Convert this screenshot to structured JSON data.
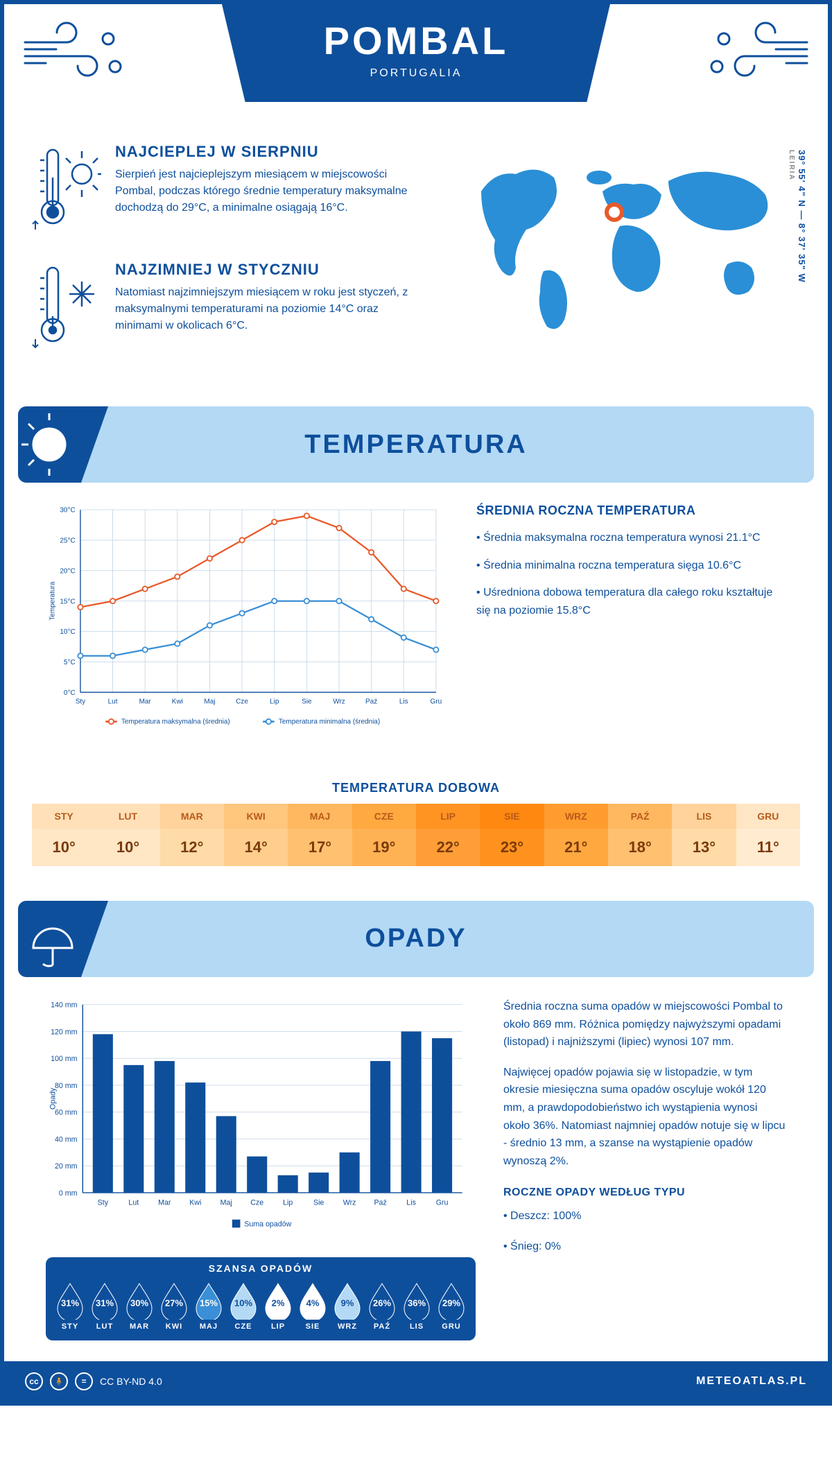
{
  "header": {
    "title": "POMBAL",
    "country": "PORTUGALIA"
  },
  "coords": "39° 55' 4\" N — 8° 37' 35\" W",
  "region": "LEIRIA",
  "hot": {
    "title": "NAJCIEPLEJ W SIERPNIU",
    "text": "Sierpień jest najcieplejszym miesiącem w miejscowości Pombal, podczas którego średnie temperatury maksymalne dochodzą do 29°C, a minimalne osiągają 16°C."
  },
  "cold": {
    "title": "NAJZIMNIEJ W STYCZNIU",
    "text": "Natomiast najzimniejszym miesiącem w roku jest styczeń, z maksymalnymi temperaturami na poziomie 14°C oraz minimami w okolicach 6°C."
  },
  "sections": {
    "temperature": "TEMPERATURA",
    "rain": "OPADY"
  },
  "months_short": [
    "Sty",
    "Lut",
    "Mar",
    "Kwi",
    "Maj",
    "Cze",
    "Lip",
    "Sie",
    "Wrz",
    "Paź",
    "Lis",
    "Gru"
  ],
  "months_upper": [
    "STY",
    "LUT",
    "MAR",
    "KWI",
    "MAJ",
    "CZE",
    "LIP",
    "SIE",
    "WRZ",
    "PAŹ",
    "LIS",
    "GRU"
  ],
  "temp_chart": {
    "type": "line",
    "ylabel": "Temperatura",
    "ylim": [
      0,
      30
    ],
    "ytick_step": 5,
    "yticks": [
      "0°C",
      "5°C",
      "10°C",
      "15°C",
      "20°C",
      "25°C",
      "30°C"
    ],
    "max": [
      14,
      15,
      17,
      19,
      22,
      25,
      28,
      29,
      27,
      23,
      17,
      15
    ],
    "min": [
      6,
      6,
      7,
      8,
      11,
      13,
      15,
      15,
      15,
      12,
      9,
      7
    ],
    "max_color": "#e85a2a",
    "min_color": "#3a8fd6",
    "grid_color": "#c8d8e8",
    "legend_max": "Temperatura maksymalna (średnia)",
    "legend_min": "Temperatura minimalna (średnia)"
  },
  "avg_temp": {
    "title": "ŚREDNIA ROCZNA TEMPERATURA",
    "items": [
      "• Średnia maksymalna roczna temperatura wynosi 21.1°C",
      "• Średnia minimalna roczna temperatura sięga 10.6°C",
      "• Uśredniona dobowa temperatura dla całego roku kształtuje się na poziomie 15.8°C"
    ]
  },
  "daily_title": "TEMPERATURA DOBOWA",
  "daily": {
    "values": [
      "10°",
      "10°",
      "12°",
      "14°",
      "17°",
      "19°",
      "22°",
      "23°",
      "21°",
      "18°",
      "13°",
      "11°"
    ],
    "head_colors": [
      "#ffe0b8",
      "#ffe0b8",
      "#ffd39b",
      "#ffc67d",
      "#ffb85f",
      "#ffa941",
      "#ff9423",
      "#ff8810",
      "#ff9c2f",
      "#ffb85f",
      "#ffd39b",
      "#ffe6c4"
    ],
    "val_colors": [
      "#ffe6c4",
      "#ffe6c4",
      "#ffdba8",
      "#ffce8c",
      "#ffc070",
      "#ffb254",
      "#ff9e36",
      "#ff921e",
      "#ffa840",
      "#ffc070",
      "#ffdba8",
      "#ffecd0"
    ]
  },
  "rain_chart": {
    "type": "bar",
    "ylabel": "Opady",
    "ylim": [
      0,
      140
    ],
    "ytick_step": 20,
    "yticks": [
      "0 mm",
      "20 mm",
      "40 mm",
      "60 mm",
      "80 mm",
      "100 mm",
      "120 mm",
      "140 mm"
    ],
    "values": [
      118,
      95,
      98,
      82,
      57,
      27,
      13,
      15,
      30,
      98,
      120,
      115
    ],
    "bar_color": "#0e4f9c",
    "grid_color": "#c8d8e8",
    "legend": "Suma opadów"
  },
  "rain_text": {
    "p1": "Średnia roczna suma opadów w miejscowości Pombal to około 869 mm. Różnica pomiędzy najwyższymi opadami (listopad) i najniższymi (lipiec) wynosi 107 mm.",
    "p2": "Najwięcej opadów pojawia się w listopadzie, w tym okresie miesięczna suma opadów oscyluje wokół 120 mm, a prawdopodobieństwo ich wystąpienia wynosi około 36%. Natomiast najmniej opadów notuje się w lipcu - średnio 13 mm, a szanse na wystąpienie opadów wynoszą 2%.",
    "type_title": "ROCZNE OPADY WEDŁUG TYPU",
    "type_items": [
      "• Deszcz: 100%",
      "• Śnieg: 0%"
    ]
  },
  "chance": {
    "title": "SZANSA OPADÓW",
    "pct": [
      31,
      31,
      30,
      27,
      15,
      10,
      2,
      4,
      9,
      26,
      36,
      29
    ],
    "fill_dark": "#0e4f9c",
    "fill_mid": "#3a8fd6",
    "fill_light": "#b3d9f5",
    "fill_white": "#ffffff"
  },
  "footer": {
    "license": "CC BY-ND 4.0",
    "brand": "METEOATLAS.PL"
  },
  "colors": {
    "primary": "#0e4f9c",
    "banner": "#b3d9f5"
  }
}
